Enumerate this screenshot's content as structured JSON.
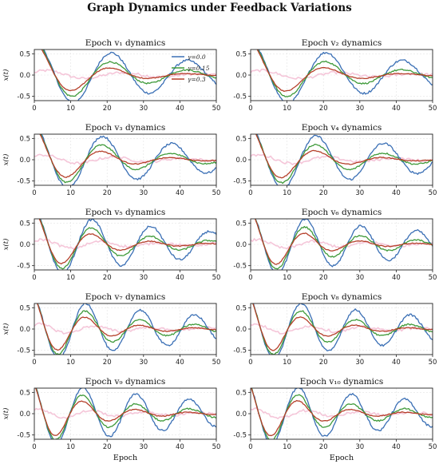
{
  "figure_title": "Graph Dynamics under Feedback Variations",
  "chart_data": {
    "type": "line",
    "title": "Graph Dynamics under Feedback Variations",
    "grid": true,
    "xlim": [
      0,
      50
    ],
    "ylim": [
      -0.6,
      0.6
    ],
    "xticks": [
      "0",
      "10",
      "20",
      "30",
      "40",
      "50"
    ],
    "yticks": [
      "0.5",
      "0.0",
      "-0.5"
    ],
    "xlabel": "Epoch",
    "ylabel": "x(t)",
    "legend": {
      "location": "top-right",
      "panel": 1,
      "entries": [
        "γ=0.0",
        "γ=0.15",
        "γ=0.3"
      ]
    },
    "series_colors": [
      "#3a6fb5",
      "#3f9a3a",
      "#b5402b"
    ],
    "panels": [
      {
        "title": "Epoch v₁ dynamics",
        "omega": 0.3,
        "phase": -0.12
      },
      {
        "title": "Epoch v₂ dynamics",
        "omega": 0.3,
        "phase": 0.0
      },
      {
        "title": "Epoch v₃ dynamics",
        "omega": 0.33,
        "phase": 0.05
      },
      {
        "title": "Epoch v₄ dynamics",
        "omega": 0.34,
        "phase": 0.1
      },
      {
        "title": "Epoch v₅ dynamics",
        "omega": 0.39,
        "phase": 0.05
      },
      {
        "title": "Epoch v₆ dynamics",
        "omega": 0.41,
        "phase": 0.1
      },
      {
        "title": "Epoch v₇ dynamics",
        "omega": 0.42,
        "phase": 0.3
      },
      {
        "title": "Epoch v₈ dynamics",
        "omega": 0.42,
        "phase": 0.4
      },
      {
        "title": "Epoch v₉ dynamics",
        "omega": 0.43,
        "phase": 0.5
      },
      {
        "title": "Epoch v₁₀ dynamics",
        "omega": 0.43,
        "phase": 0.6
      }
    ],
    "series": [
      {
        "name": "γ=0.0",
        "amplitude": 0.8,
        "decay": 0.02
      },
      {
        "name": "γ=0.15",
        "amplitude": 0.8,
        "decay": 0.045
      },
      {
        "name": "γ=0.3",
        "amplitude": 0.8,
        "decay": 0.075
      }
    ]
  }
}
